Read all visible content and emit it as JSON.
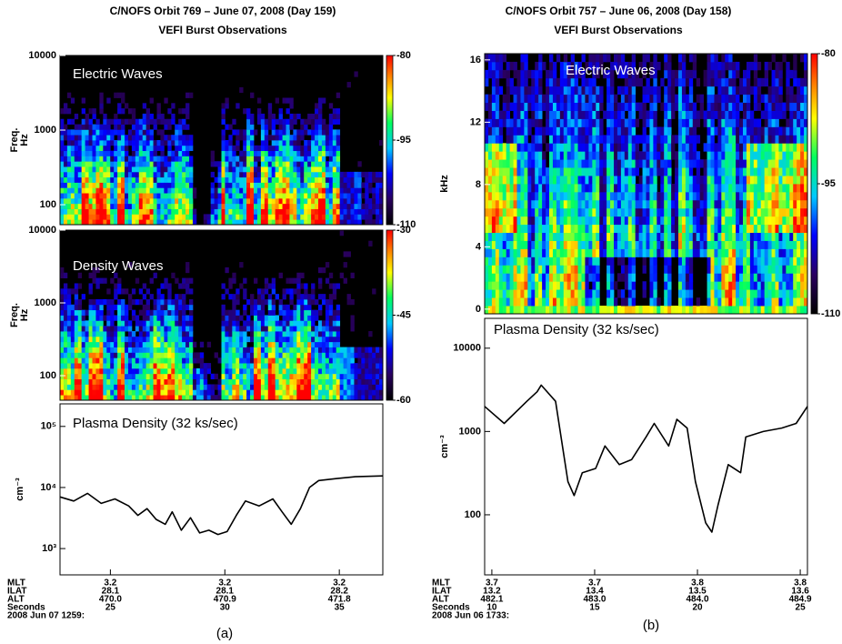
{
  "panels": [
    {
      "title": "C/NOFS Orbit 769 – June 07, 2008 (Day 159)",
      "subtitle": "VEFI Burst Observations",
      "caption": "(a)",
      "ephemeris": [
        {
          "name": "MLT",
          "values": [
            "3.2",
            "3.2",
            "3.2"
          ]
        },
        {
          "name": "ILAT",
          "values": [
            "28.1",
            "28.1",
            "28.2"
          ]
        },
        {
          "name": "ALT",
          "values": [
            "470.0",
            "470.9",
            "471.8"
          ]
        }
      ],
      "seconds_label": "Seconds",
      "date": "2008 Jun 07 1259:"
    },
    {
      "title": "C/NOFS Orbit 757 – June 06, 2008 (Day 158)",
      "subtitle": "VEFI Burst Observations",
      "caption": "(b)",
      "ephemeris": [
        {
          "name": "MLT",
          "values": [
            "3.7",
            "3.7",
            "3.8",
            "3.8"
          ]
        },
        {
          "name": "ILAT",
          "values": [
            "13.2",
            "13.4",
            "13.5",
            "13.6"
          ]
        },
        {
          "name": "ALT",
          "values": [
            "482.1",
            "483.0",
            "484.0",
            "484.9"
          ]
        }
      ],
      "seconds_label": "Seconds",
      "date": "2008 Jun 06 1733:"
    }
  ],
  "chart_data": [
    {
      "type": "spectrogram",
      "annotation": "Electric Waves",
      "ylabel": [
        "Freq.",
        "Hz"
      ],
      "log_y": true,
      "ylim": [
        54,
        10000
      ],
      "yticks": [
        100,
        1000,
        10000
      ],
      "clim": [
        -110,
        -80
      ],
      "cticks": [
        -80,
        -95,
        -110
      ]
    },
    {
      "type": "spectrogram",
      "annotation": "Density Waves",
      "ylabel": [
        "Freq.",
        "Hz"
      ],
      "log_y": true,
      "ylim": [
        46,
        10000
      ],
      "yticks": [
        100,
        1000,
        10000
      ],
      "clim": [
        -60,
        -30
      ],
      "cticks": [
        -30,
        -45,
        -60
      ]
    },
    {
      "type": "line",
      "annotation": "Plasma Density (32 ks/sec)",
      "ylabel": [
        "cm⁻³"
      ],
      "log_y": true,
      "color": "#000000",
      "xlim": [
        22.8,
        36.9
      ],
      "xticks": [
        25,
        30,
        35
      ],
      "ylim": [
        371,
        234000
      ],
      "yticks": [
        {
          "value": 1000,
          "label": "10³"
        },
        {
          "value": 10000,
          "label": "10⁴"
        },
        {
          "value": 100000,
          "label": "10⁵"
        }
      ],
      "x": [
        22.8,
        23.4,
        24.0,
        24.6,
        25.2,
        25.8,
        26.2,
        26.6,
        27.0,
        27.4,
        27.7,
        28.1,
        28.5,
        28.9,
        29.3,
        29.7,
        30.1,
        30.5,
        30.9,
        31.5,
        32.1,
        32.5,
        32.9,
        33.3,
        33.7,
        34.1,
        34.9,
        35.7,
        36.9
      ],
      "values": [
        7000,
        6000,
        8000,
        5500,
        6500,
        5000,
        3500,
        4500,
        3000,
        2500,
        4000,
        2000,
        3200,
        1800,
        2000,
        1700,
        1900,
        3500,
        6000,
        5000,
        6500,
        4000,
        2500,
        4500,
        10000,
        13000,
        14000,
        15000,
        15500
      ]
    },
    {
      "type": "spectrogram",
      "annotation": "Electric Waves",
      "ylabel": [
        "kHz"
      ],
      "log_y": false,
      "ylim": [
        -0.3,
        16.4
      ],
      "yticks": [
        0,
        4,
        8,
        12,
        16
      ],
      "clim": [
        -110,
        -80
      ],
      "cticks": [
        -80,
        -95,
        -110
      ]
    },
    {
      "type": "line",
      "annotation": "Plasma Density (32 ks/sec)",
      "ylabel": [
        "cm⁻³"
      ],
      "log_y": true,
      "color": "#000000",
      "xlim": [
        9.65,
        25.35
      ],
      "xticks": [
        10,
        15,
        20,
        25
      ],
      "ylim": [
        19,
        22800
      ],
      "yticks": [
        100,
        1000,
        10000
      ],
      "x": [
        9.65,
        10.6,
        11.7,
        12.2,
        12.4,
        13.1,
        13.5,
        13.7,
        14.0,
        14.4,
        15.05,
        15.5,
        16.2,
        16.8,
        17.5,
        17.9,
        18.6,
        19.0,
        19.5,
        19.9,
        20.4,
        20.7,
        21.0,
        21.5,
        22.1,
        22.35,
        23.2,
        24.1,
        24.8,
        25.35
      ],
      "values": [
        2000,
        1250,
        2300,
        3000,
        3600,
        2300,
        520,
        250,
        170,
        320,
        360,
        670,
        400,
        460,
        860,
        1250,
        670,
        1400,
        1100,
        250,
        80,
        62,
        130,
        400,
        320,
        860,
        1000,
        1100,
        1250,
        2000
      ]
    }
  ]
}
